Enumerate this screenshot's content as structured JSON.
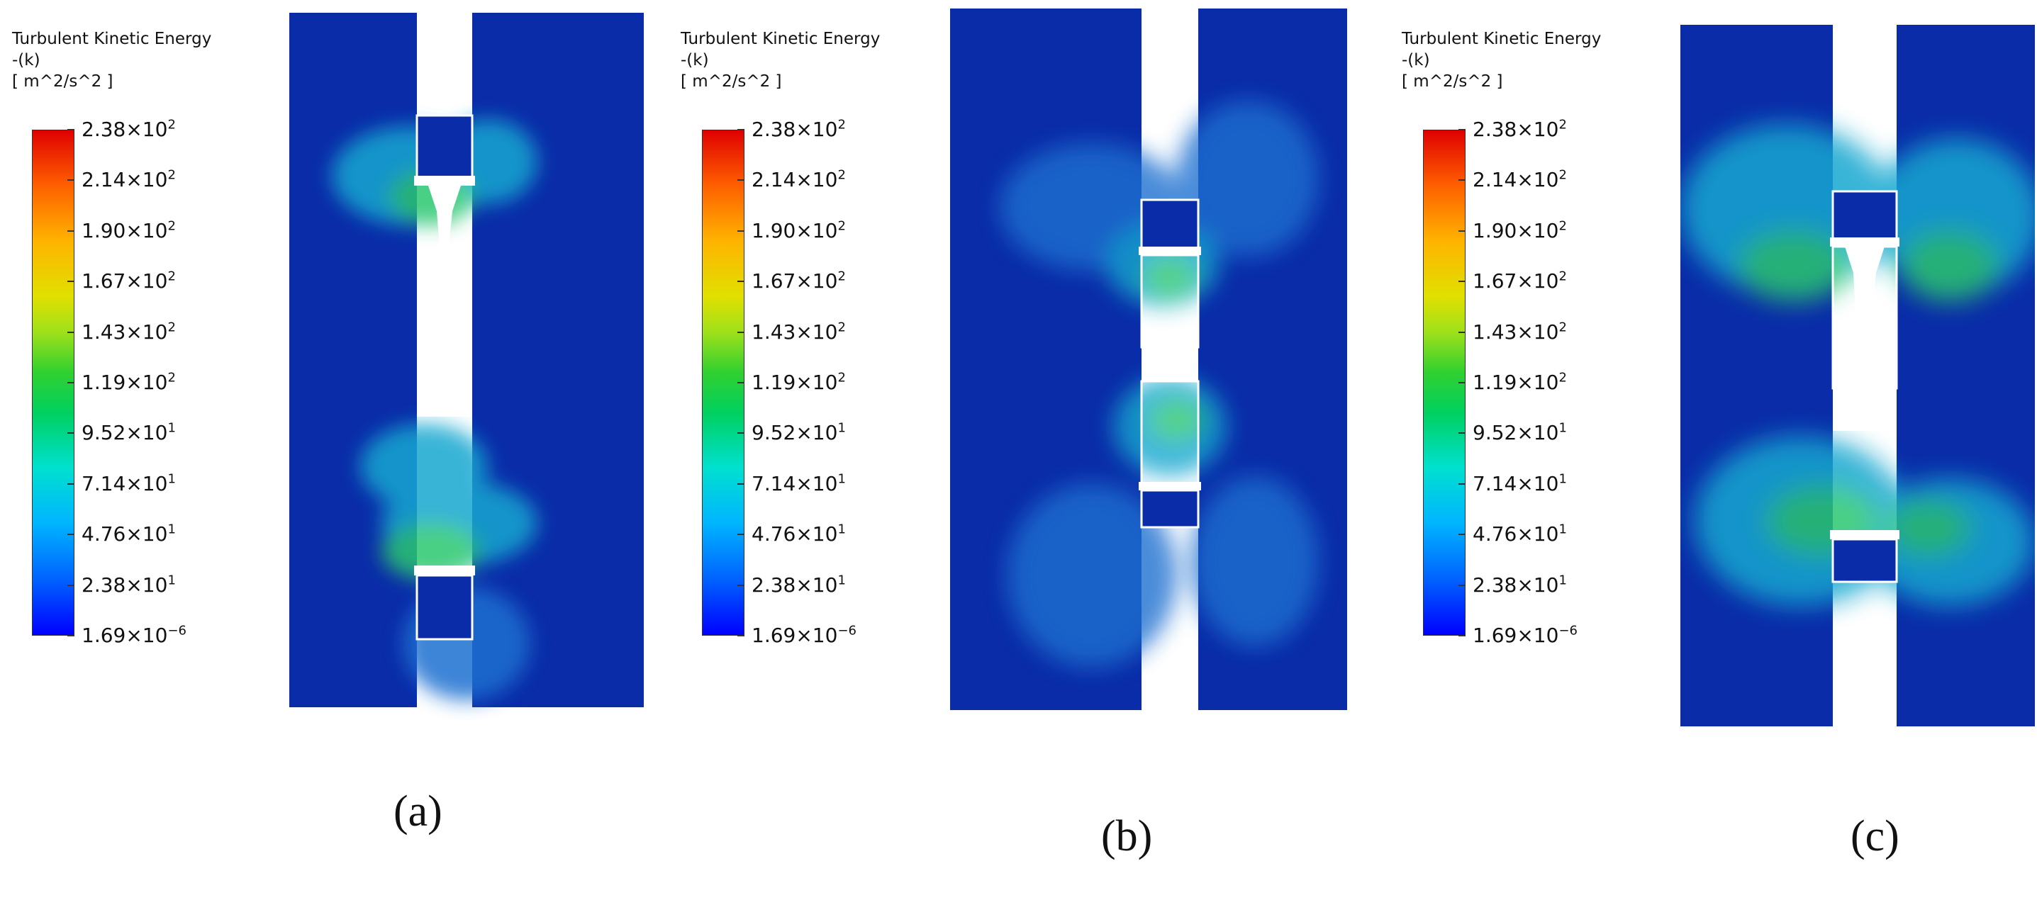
{
  "legend": {
    "title_line1": "Turbulent Kinetic Energy",
    "title_line2": "-(k)",
    "unit": "[ m^2/s^2 ]",
    "ticks": [
      {
        "mantissa": "2.38×10",
        "exp": "2"
      },
      {
        "mantissa": "2.14×10",
        "exp": "2"
      },
      {
        "mantissa": "1.90×10",
        "exp": "2"
      },
      {
        "mantissa": "1.67×10",
        "exp": "2"
      },
      {
        "mantissa": "1.43×10",
        "exp": "2"
      },
      {
        "mantissa": "1.19×10",
        "exp": "2"
      },
      {
        "mantissa": "9.52×10",
        "exp": "1"
      },
      {
        "mantissa": "7.14×10",
        "exp": "1"
      },
      {
        "mantissa": "4.76×10",
        "exp": "1"
      },
      {
        "mantissa": "2.38×10",
        "exp": "1"
      },
      {
        "mantissa": "1.69×10",
        "exp": "−6"
      }
    ],
    "colors": [
      "#0000ff",
      "#00b4ff",
      "#00d060",
      "#e0e000",
      "#ff6000",
      "#e00000"
    ]
  },
  "panels": [
    {
      "caption": "(a)"
    },
    {
      "caption": "(b)"
    },
    {
      "caption": "(c)"
    }
  ],
  "field_color": "#0a2ca8"
}
